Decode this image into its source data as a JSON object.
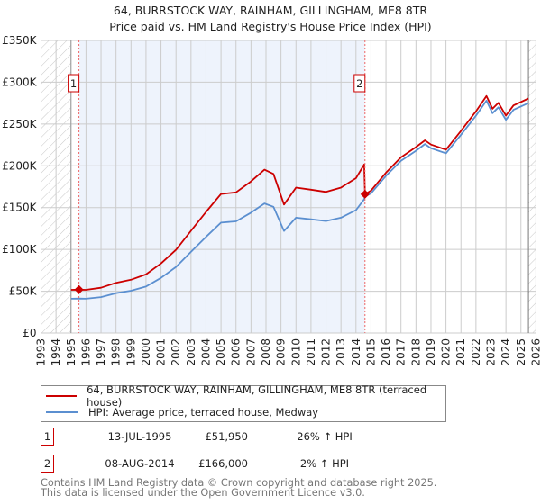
{
  "title": "64, BURRSTOCK WAY, RAINHAM, GILLINGHAM, ME8 8TR",
  "subtitle": "Price paid vs. HM Land Registry's House Price Index (HPI)",
  "colors": {
    "property": "#cc0000",
    "hpi": "#5b8fd0",
    "shade": "#eef3fc",
    "grid": "#cccccc"
  },
  "chart_data": {
    "type": "line",
    "title": "64, BURRSTOCK WAY, RAINHAM, GILLINGHAM, ME8 8TR",
    "xlim": [
      1993,
      2026
    ],
    "ylim": [
      0,
      350000
    ],
    "grid": true,
    "x_ticks": [
      "1993",
      "1994",
      "1995",
      "1996",
      "1997",
      "1998",
      "1999",
      "2000",
      "2001",
      "2002",
      "2003",
      "2004",
      "2005",
      "2006",
      "2007",
      "2008",
      "2009",
      "2010",
      "2011",
      "2012",
      "2013",
      "2014",
      "2015",
      "2016",
      "2017",
      "2018",
      "2019",
      "2020",
      "2021",
      "2022",
      "2023",
      "2024",
      "2025",
      "2026"
    ],
    "y_ticks": [
      {
        "v": 0,
        "label": "£0"
      },
      {
        "v": 50000,
        "label": "£50K"
      },
      {
        "v": 100000,
        "label": "£100K"
      },
      {
        "v": 150000,
        "label": "£150K"
      },
      {
        "v": 200000,
        "label": "£200K"
      },
      {
        "v": 250000,
        "label": "£250K"
      },
      {
        "v": 300000,
        "label": "£300K"
      },
      {
        "v": 350000,
        "label": "£350K"
      }
    ],
    "hatched_before": 1995.0,
    "hatched_after": 2025.5,
    "series": [
      {
        "name": "64, BURRSTOCK WAY, RAINHAM, GILLINGHAM, ME8 8TR (terraced house)",
        "x": [
          1995.0,
          1995.53,
          1996,
          1997,
          1998,
          1999,
          2000,
          2001,
          2002,
          2003,
          2004,
          2005,
          2006,
          2007,
          2007.9,
          2008.5,
          2009.2,
          2010,
          2011,
          2012,
          2013,
          2014,
          2014.55,
          2014.6,
          2015,
          2016,
          2017,
          2018,
          2018.6,
          2019,
          2020,
          2021,
          2022,
          2022.7,
          2023.1,
          2023.5,
          2024,
          2024.5,
          2025.5
        ],
        "values": [
          51700,
          51950,
          51700,
          54200,
          60100,
          63800,
          70100,
          83200,
          99500,
          122200,
          144900,
          166300,
          168200,
          181400,
          195300,
          190300,
          153700,
          173900,
          171400,
          168800,
          173900,
          185200,
          201600,
          166000,
          170300,
          191800,
          210100,
          222400,
          230500,
          225400,
          219300,
          241700,
          265200,
          283600,
          268300,
          275400,
          260100,
          272300,
          280500
        ]
      },
      {
        "name": "HPI: Average price, terraced house, Medway",
        "x": [
          1995.0,
          1995.53,
          1996,
          1997,
          1998,
          1999,
          2000,
          2001,
          2002,
          2003,
          2004,
          2005,
          2006,
          2007,
          2007.9,
          2008.5,
          2009.2,
          2010,
          2011,
          2012,
          2013,
          2014,
          2014.55,
          2014.6,
          2015,
          2016,
          2017,
          2018,
          2018.6,
          2019,
          2020,
          2021,
          2022,
          2022.7,
          2023.1,
          2023.5,
          2024,
          2024.5,
          2025.5
        ],
        "values": [
          41000,
          41200,
          41000,
          43000,
          47700,
          50600,
          55600,
          66000,
          79000,
          97000,
          115000,
          132000,
          133500,
          144000,
          155000,
          151000,
          122000,
          138000,
          136000,
          134000,
          138000,
          147000,
          160000,
          163000,
          167000,
          188000,
          206000,
          218000,
          226000,
          221000,
          215000,
          237000,
          260000,
          278000,
          263000,
          270000,
          255000,
          267000,
          275000
        ]
      }
    ],
    "sales": [
      {
        "label": "1",
        "x": 1995.53,
        "value": 51950
      },
      {
        "label": "2",
        "x": 2014.6,
        "value": 166000
      }
    ]
  },
  "legend": {
    "property": "64, BURRSTOCK WAY, RAINHAM, GILLINGHAM, ME8 8TR (terraced house)",
    "hpi": "HPI: Average price, terraced house, Medway"
  },
  "transactions": [
    {
      "num": "1",
      "date": "13-JUL-1995",
      "price": "£51,950",
      "hpi": "26% ↑ HPI"
    },
    {
      "num": "2",
      "date": "08-AUG-2014",
      "price": "£166,000",
      "hpi": "2% ↑ HPI"
    }
  ],
  "footer": {
    "line1": "Contains HM Land Registry data © Crown copyright and database right 2025.",
    "line2": "This data is licensed under the Open Government Licence v3.0."
  }
}
